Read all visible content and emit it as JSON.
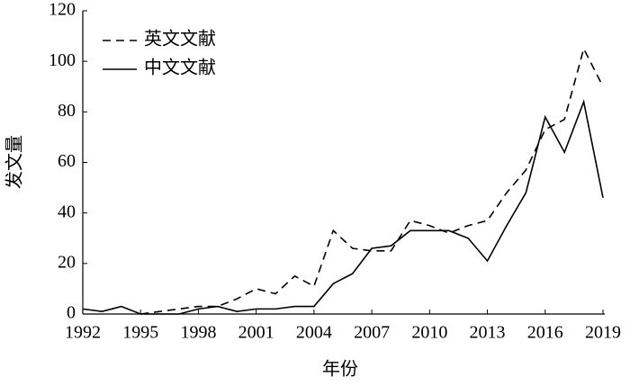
{
  "chart_data": {
    "type": "line",
    "x_label": "年份",
    "y_label": "发文量",
    "x": [
      1992,
      1993,
      1994,
      1995,
      1996,
      1997,
      1998,
      1999,
      2000,
      2001,
      2002,
      2003,
      2004,
      2005,
      2006,
      2007,
      2008,
      2009,
      2010,
      2011,
      2012,
      2013,
      2014,
      2015,
      2016,
      2017,
      2018,
      2019
    ],
    "series": [
      {
        "name": "英文文献",
        "color": "#000000",
        "linestyle": "dashed",
        "values": [
          null,
          null,
          null,
          0,
          1,
          2,
          3,
          3,
          6,
          10,
          8,
          15,
          11,
          33,
          26,
          25,
          25,
          37,
          35,
          32,
          35,
          37,
          48,
          57,
          73,
          77,
          105,
          90
        ]
      },
      {
        "name": "中文文献",
        "color": "#000000",
        "linestyle": "solid",
        "values": [
          2,
          1,
          3,
          0,
          0,
          0,
          2,
          3,
          1,
          2,
          2,
          3,
          3,
          12,
          16,
          26,
          27,
          33,
          33,
          33,
          30,
          21,
          35,
          48,
          78,
          64,
          84,
          46
        ]
      }
    ],
    "xlim": [
      1992,
      2019
    ],
    "xticks": [
      1992,
      1995,
      1998,
      2001,
      2004,
      2007,
      2010,
      2013,
      2016,
      2019
    ],
    "ylim": [
      0,
      120
    ],
    "yticks": [
      0,
      20,
      40,
      60,
      80,
      100,
      120
    ],
    "legend": "upper left"
  }
}
